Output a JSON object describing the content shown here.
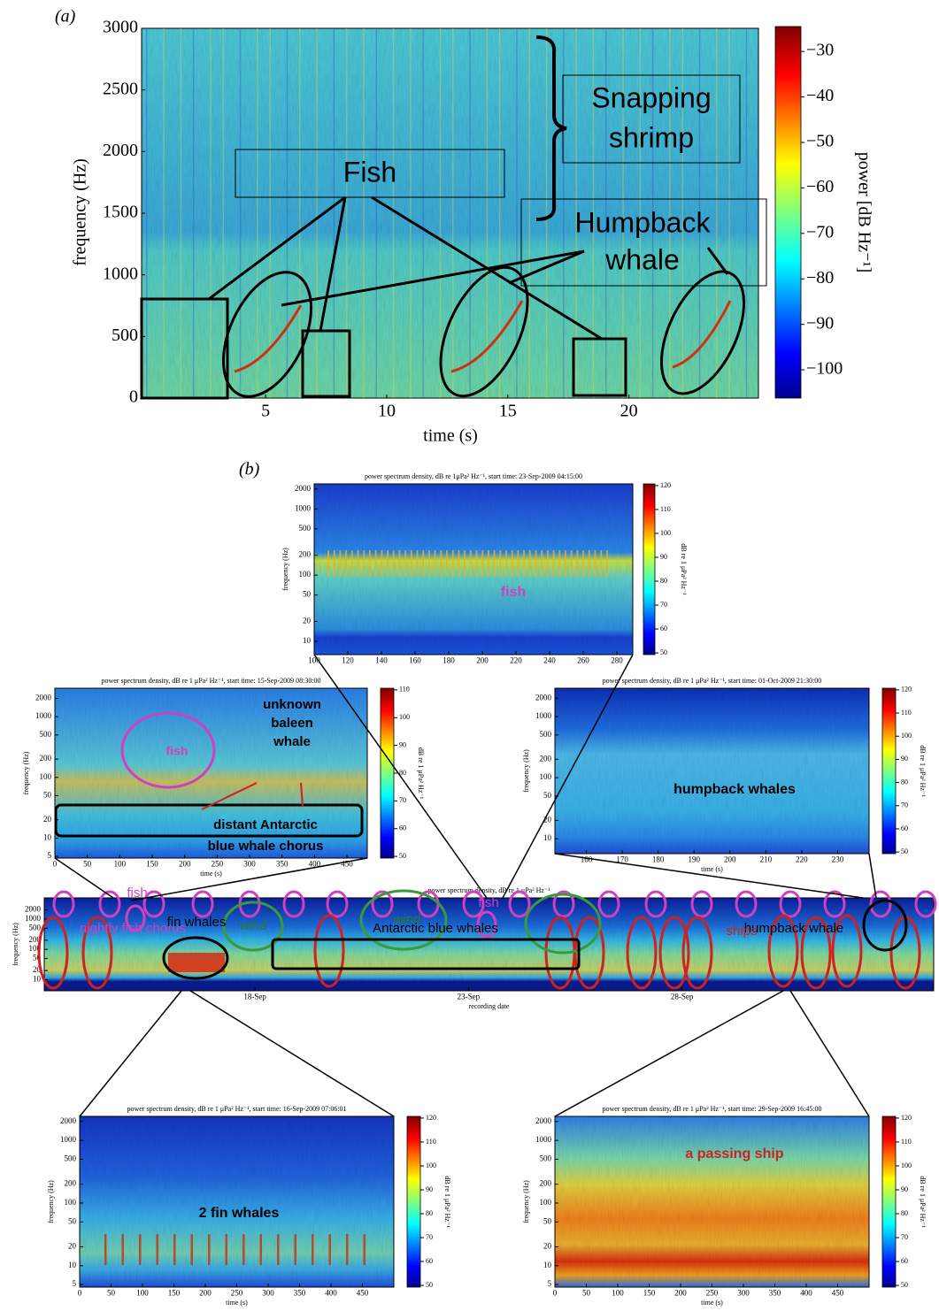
{
  "panel_a": {
    "label": "(a)",
    "y_label": "frequency (Hz)",
    "x_label": "time (s)",
    "y_ticks": [
      "0",
      "500",
      "1000",
      "1500",
      "2000",
      "2500",
      "3000"
    ],
    "x_ticks": [
      "5",
      "10",
      "15",
      "20"
    ],
    "colorbar_label": "power [dB Hz⁻¹]",
    "colorbar_ticks": [
      "−30",
      "−40",
      "−50",
      "−60",
      "−70",
      "−80",
      "−90",
      "−100"
    ],
    "annotations": {
      "snapping_shrimp": [
        "Snapping",
        "shrimp"
      ],
      "fish": "Fish",
      "humpback_whale": [
        "Humpback",
        "whale"
      ]
    }
  },
  "panel_b": {
    "label": "(b)",
    "top": {
      "title": "power spectrum density, dB re 1μPa² Hz⁻¹, start time: 23-Sep-2009 04:15:00",
      "y_label": "frequency (Hz)",
      "y_ticks": [
        "10",
        "20",
        "50",
        "100",
        "200",
        "500",
        "1000",
        "2000"
      ],
      "x_ticks": [
        "100",
        "120",
        "140",
        "160",
        "180",
        "200",
        "220",
        "240",
        "260",
        "280"
      ],
      "colorbar_label": "dB re 1 μPa² Hz⁻¹",
      "colorbar_ticks": [
        "120",
        "110",
        "100",
        "90",
        "80",
        "70",
        "60",
        "50"
      ],
      "annotations": {
        "fish": "fish"
      }
    },
    "left": {
      "title": "power spectrum density, dB re 1 μPa² Hz⁻¹, start time: 15-Sep-2009 08:30:00",
      "y_label": "frequency (Hz)",
      "x_label": "time (s)",
      "y_ticks": [
        "5",
        "10",
        "20",
        "50",
        "100",
        "200",
        "500",
        "1000",
        "2000"
      ],
      "x_ticks": [
        "0",
        "50",
        "100",
        "150",
        "200",
        "250",
        "300",
        "350",
        "400",
        "450"
      ],
      "colorbar_label": "dB re 1 μPa² Hz⁻¹",
      "colorbar_ticks": [
        "110",
        "100",
        "90",
        "80",
        "70",
        "60",
        "50"
      ],
      "annotations": {
        "fish": "fish",
        "unknown_baleen_whale": [
          "unknown",
          "baleen",
          "whale"
        ],
        "blue_whale_chorus": [
          "distant Antarctic",
          "blue whale chorus"
        ]
      }
    },
    "right": {
      "title": "power spectrum density, dB re 1 μPa² Hz⁻¹, start time: 01-Oct-2009 21:30:00",
      "y_label": "frequency (Hz)",
      "x_label": "time (s)",
      "y_ticks": [
        "10",
        "20",
        "50",
        "100",
        "200",
        "500",
        "1000",
        "2000"
      ],
      "x_ticks": [
        "160",
        "170",
        "180",
        "190",
        "200",
        "210",
        "220",
        "230"
      ],
      "colorbar_label": "dB re 1 μPa² Hz⁻¹",
      "colorbar_ticks": [
        "120",
        "110",
        "100",
        "90",
        "80",
        "70",
        "60",
        "50"
      ],
      "annotations": {
        "humpback_whales": "humpback whales"
      }
    },
    "main": {
      "title": "power spectrum density, dB re 1 μPa² Hz⁻¹",
      "y_label": "frequency (Hz)",
      "x_label": "recording date",
      "y_ticks": [
        "10",
        "20",
        "50",
        "100",
        "200",
        "500",
        "1000",
        "2000"
      ],
      "x_ticks": [
        "18-Sep",
        "23-Sep",
        "28-Sep"
      ],
      "annotations": {
        "nightly_fish_chorus": "nightly fish chorus",
        "fish_1": "fish",
        "wind_1": "wind",
        "wind_2": "wind",
        "fish_2": "fish",
        "humpback_whale": "humpback whale",
        "fin_whales": "fin whales",
        "antarctic_blue_whales": "Antarctic blue whales",
        "ships": "ships"
      }
    },
    "bottom_left": {
      "title": "power spectrum density, dB re 1 μPa² Hz⁻¹, start time: 16-Sep-2009 07:06:01",
      "y_label": "frequency (Hz)",
      "x_label": "time (s)",
      "y_ticks": [
        "5",
        "10",
        "20",
        "50",
        "100",
        "200",
        "500",
        "1000",
        "2000"
      ],
      "x_ticks": [
        "0",
        "50",
        "100",
        "150",
        "200",
        "250",
        "300",
        "350",
        "400",
        "450"
      ],
      "colorbar_label": "dB re 1 μPa² Hz⁻¹",
      "colorbar_ticks": [
        "120",
        "110",
        "100",
        "90",
        "80",
        "70",
        "60",
        "50"
      ],
      "annotations": {
        "fin_whales": "2 fin whales"
      }
    },
    "bottom_right": {
      "title": "power spectrum density, dB re 1 μPa² Hz⁻¹, start time: 29-Sep-2009 16:45:00",
      "y_label": "frequency (Hz)",
      "x_label": "time (s)",
      "y_ticks": [
        "5",
        "10",
        "20",
        "50",
        "100",
        "200",
        "500",
        "1000",
        "2000"
      ],
      "x_ticks": [
        "0",
        "50",
        "100",
        "150",
        "200",
        "250",
        "300",
        "350",
        "400",
        "450"
      ],
      "colorbar_label": "dB re 1 μPa² Hz⁻¹",
      "colorbar_ticks": [
        "120",
        "110",
        "100",
        "90",
        "80",
        "70",
        "60",
        "50"
      ],
      "annotations": {
        "passing_ship": "a passing ship"
      }
    }
  }
}
